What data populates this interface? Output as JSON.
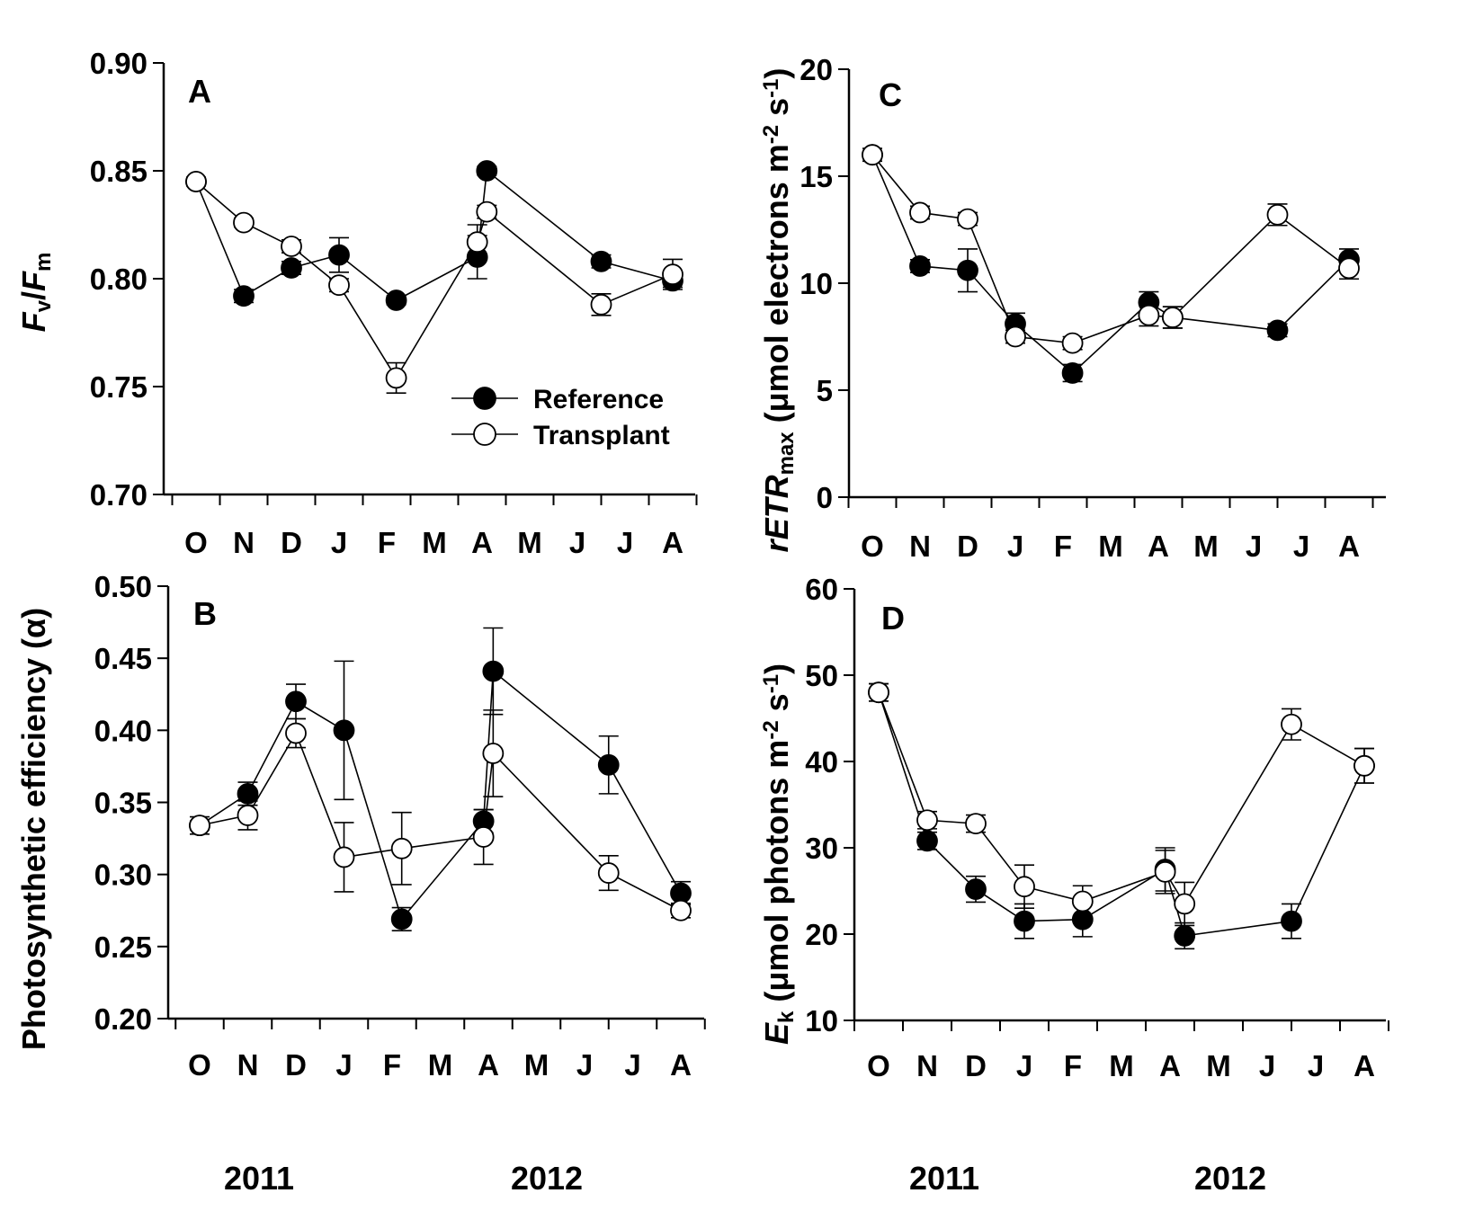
{
  "chart_data": [
    {
      "type": "line",
      "panel_label": "A",
      "ylabel_parts": [
        "F",
        "v",
        "/",
        "F",
        "m"
      ],
      "ylim": [
        0.7,
        0.9
      ],
      "yticks": [
        "0.70",
        "0.75",
        "0.80",
        "0.85",
        "0.90"
      ],
      "xtick_labels": [
        "O",
        "N",
        "D",
        "J",
        "F",
        "M",
        "A",
        "M",
        "J",
        "J",
        "A"
      ],
      "legend": {
        "placement": "lower-right",
        "entries": [
          "Reference",
          "Transplant"
        ]
      },
      "series": [
        {
          "name": "Reference",
          "marker": "filled-circle",
          "x": [
            0.0,
            1.0,
            2.0,
            3.0,
            4.2,
            5.9,
            6.1,
            8.5,
            10.0
          ],
          "y": [
            0.845,
            0.792,
            0.805,
            0.811,
            0.79,
            0.81,
            0.85,
            0.808,
            0.799
          ],
          "err": [
            0.0,
            0.003,
            0.003,
            0.008,
            0.002,
            0.01,
            0.002,
            0.003,
            0.003
          ]
        },
        {
          "name": "Transplant",
          "marker": "open-circle",
          "x": [
            0.0,
            1.0,
            2.0,
            3.0,
            4.2,
            5.9,
            6.1,
            8.5,
            10.0
          ],
          "y": [
            0.845,
            0.826,
            0.815,
            0.797,
            0.754,
            0.817,
            0.831,
            0.788,
            0.802
          ],
          "err": [
            0.002,
            0.002,
            0.003,
            0.003,
            0.007,
            0.008,
            0.003,
            0.005,
            0.007
          ]
        }
      ]
    },
    {
      "type": "line",
      "panel_label": "B",
      "ylabel": "Photosynthetic efficiency (α)",
      "ylim": [
        0.2,
        0.5
      ],
      "yticks": [
        "0.20",
        "0.25",
        "0.30",
        "0.35",
        "0.40",
        "0.45",
        "0.50"
      ],
      "xtick_labels": [
        "O",
        "N",
        "D",
        "J",
        "F",
        "M",
        "A",
        "M",
        "J",
        "J",
        "A"
      ],
      "series": [
        {
          "name": "Reference",
          "marker": "filled-circle",
          "x": [
            0.0,
            1.0,
            2.0,
            3.0,
            4.2,
            5.9,
            6.1,
            8.5,
            10.0
          ],
          "y": [
            0.334,
            0.356,
            0.42,
            0.4,
            0.269,
            0.337,
            0.441,
            0.376,
            0.287
          ],
          "err": [
            0.003,
            0.008,
            0.012,
            0.048,
            0.008,
            0.008,
            0.03,
            0.02,
            0.008
          ]
        },
        {
          "name": "Transplant",
          "marker": "open-circle",
          "x": [
            0.0,
            1.0,
            2.0,
            3.0,
            4.2,
            5.9,
            6.1,
            8.5,
            10.0
          ],
          "y": [
            0.334,
            0.341,
            0.398,
            0.312,
            0.318,
            0.326,
            0.384,
            0.301,
            0.275
          ],
          "err": [
            0.006,
            0.01,
            0.01,
            0.024,
            0.025,
            0.019,
            0.03,
            0.012,
            0.005
          ]
        }
      ]
    },
    {
      "type": "line",
      "panel_label": "C",
      "ylabel_parts": [
        "rETR",
        "max",
        " (μmol electrons m",
        "-2",
        " s",
        "-1",
        ")"
      ],
      "ylim": [
        0,
        20
      ],
      "yticks": [
        "0",
        "5",
        "10",
        "15",
        "20"
      ],
      "xtick_labels": [
        "O",
        "N",
        "D",
        "J",
        "F",
        "M",
        "A",
        "M",
        "J",
        "J",
        "A"
      ],
      "series": [
        {
          "name": "Reference",
          "marker": "filled-circle",
          "x": [
            0.0,
            1.0,
            2.0,
            3.0,
            4.2,
            5.8,
            6.3,
            8.5,
            10.0
          ],
          "y": [
            16.0,
            10.8,
            10.6,
            8.1,
            5.8,
            9.1,
            8.4,
            7.8,
            11.1
          ],
          "err": [
            0.0,
            0.3,
            1.0,
            0.5,
            0.4,
            0.5,
            0.5,
            0.3,
            0.5
          ]
        },
        {
          "name": "Transplant",
          "marker": "open-circle",
          "x": [
            0.0,
            1.0,
            2.0,
            3.0,
            4.2,
            5.8,
            6.3,
            8.5,
            10.0
          ],
          "y": [
            16.0,
            13.3,
            13.0,
            7.5,
            7.2,
            8.5,
            8.4,
            13.2,
            10.7
          ],
          "err": [
            0.3,
            0.3,
            0.3,
            0.3,
            0.3,
            0.5,
            0.5,
            0.5,
            0.5
          ]
        }
      ]
    },
    {
      "type": "line",
      "panel_label": "D",
      "ylabel_parts": [
        "E",
        "k",
        " (μmol photons m",
        "-2",
        " s",
        "-1",
        ")"
      ],
      "ylim": [
        10,
        60
      ],
      "yticks": [
        "10",
        "20",
        "30",
        "40",
        "50",
        "60"
      ],
      "xtick_labels": [
        "O",
        "N",
        "D",
        "J",
        "F",
        "M",
        "A",
        "M",
        "J",
        "J",
        "A"
      ],
      "series": [
        {
          "name": "Reference",
          "marker": "filled-circle",
          "x": [
            0.0,
            1.0,
            2.0,
            3.0,
            4.2,
            5.9,
            6.3,
            8.5,
            10.0
          ],
          "y": [
            48.0,
            30.8,
            25.2,
            21.5,
            21.7,
            27.5,
            19.8,
            21.5,
            39.5
          ],
          "err": [
            1.0,
            1.0,
            1.5,
            2.0,
            2.0,
            2.5,
            1.5,
            2.0,
            2.0
          ]
        },
        {
          "name": "Transplant",
          "marker": "open-circle",
          "x": [
            0.0,
            1.0,
            2.0,
            3.0,
            4.2,
            5.9,
            6.3,
            8.5,
            10.0
          ],
          "y": [
            48.0,
            33.2,
            32.8,
            25.5,
            23.8,
            27.2,
            23.5,
            44.3,
            39.5
          ],
          "err": [
            1.0,
            1.0,
            1.0,
            2.5,
            1.8,
            2.5,
            2.5,
            1.8,
            2.0
          ]
        }
      ]
    }
  ],
  "years": [
    "2011",
    "2012"
  ]
}
